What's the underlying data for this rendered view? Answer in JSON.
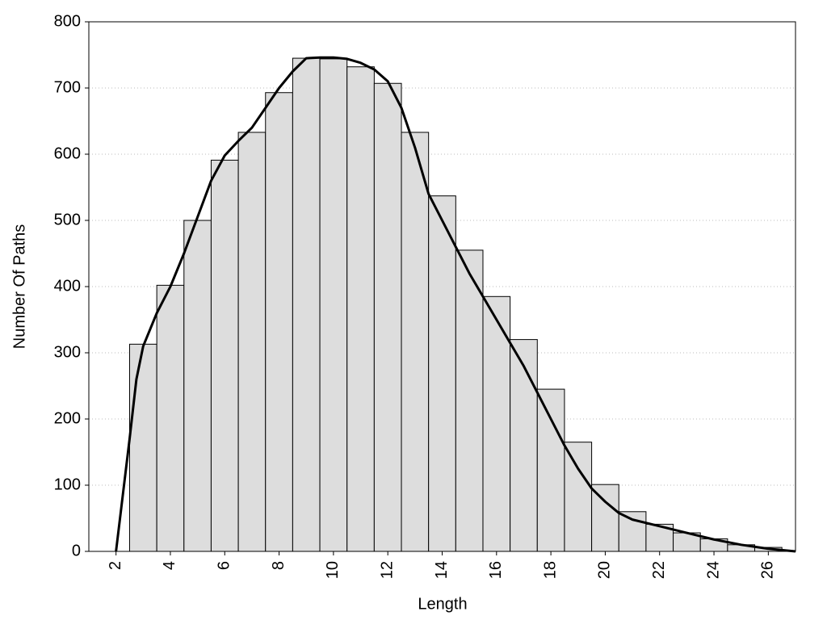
{
  "chart_data": {
    "type": "histogram",
    "x_label": "Length",
    "y_label": "Number Of Paths",
    "bins": [
      2.5,
      3.5,
      4.5,
      5.5,
      6.5,
      7.5,
      8.5,
      9.5,
      10.5,
      11.5,
      12.5,
      13.5,
      14.5,
      15.5,
      16.5,
      17.5,
      18.5,
      19.5,
      20.5,
      21.5,
      22.5,
      23.5,
      24.5,
      25.5,
      26.5
    ],
    "counts": [
      313,
      402,
      500,
      591,
      633,
      693,
      745,
      744,
      732,
      707,
      633,
      537,
      455,
      385,
      320,
      245,
      165,
      101,
      60,
      41,
      28,
      19,
      10,
      6
    ],
    "color": "#dddddd",
    "line": {
      "color": "#000000",
      "x": [
        2,
        2.5,
        2.75,
        3,
        3.5,
        4,
        4.5,
        5,
        5.5,
        6,
        6.5,
        7,
        7.5,
        8,
        8.5,
        9,
        9.5,
        10,
        10.5,
        11,
        11.5,
        12,
        12.5,
        13,
        13.5,
        14,
        14.5,
        15,
        15.5,
        16,
        16.5,
        17,
        17.5,
        18,
        18.5,
        19,
        19.5,
        20,
        20.5,
        21,
        22,
        23,
        24,
        25,
        26,
        27
      ],
      "values": [
        0,
        170,
        260,
        310,
        360,
        400,
        450,
        505,
        560,
        598,
        620,
        640,
        670,
        700,
        725,
        745,
        746,
        746,
        744,
        738,
        728,
        710,
        670,
        610,
        540,
        500,
        460,
        420,
        385,
        350,
        315,
        280,
        240,
        200,
        160,
        125,
        95,
        75,
        58,
        48,
        38,
        28,
        18,
        10,
        4,
        0
      ]
    },
    "xlim": [
      1,
      27
    ],
    "ylim": [
      0,
      800
    ],
    "xticks": [
      2,
      4,
      6,
      8,
      10,
      12,
      14,
      16,
      18,
      20,
      22,
      24,
      26
    ],
    "yticks": [
      0,
      100,
      200,
      300,
      400,
      500,
      600,
      700,
      800
    ],
    "grid": true
  }
}
